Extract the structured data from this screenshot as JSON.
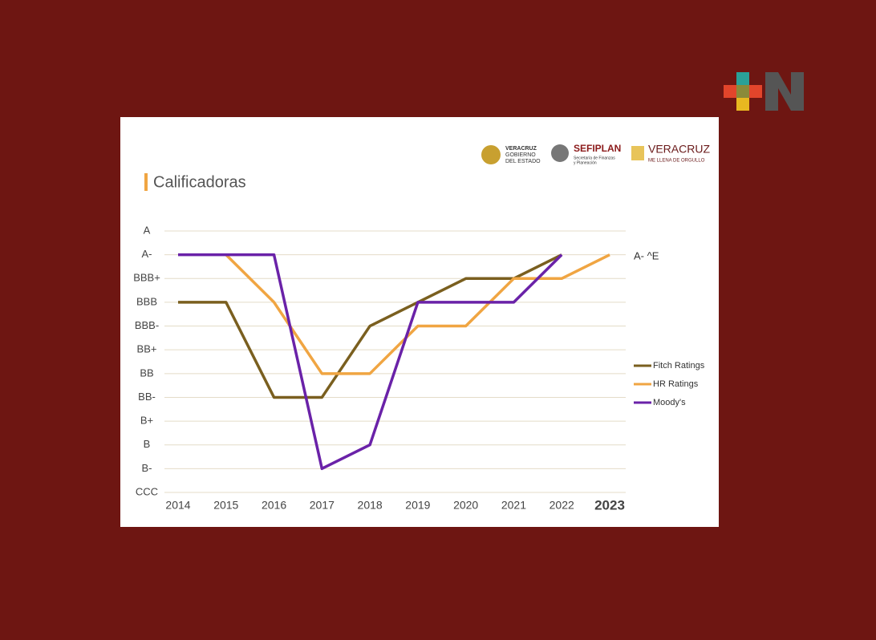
{
  "logos": {
    "gobierno": [
      "VERACRUZ",
      "GOBIERNO",
      "DEL ESTADO"
    ],
    "sefiplan": "SEFIPLAN",
    "sefiplan_sub": [
      "Secretaría de Finanzas",
      "y Planeación"
    ],
    "veracruz": "VERACRUZ",
    "veracruz_sub": "ME LLENA DE ORGULLO"
  },
  "chart_data": {
    "type": "line",
    "title": "Calificadoras",
    "categories": [
      "2014",
      "2015",
      "2016",
      "2017",
      "2018",
      "2019",
      "2020",
      "2021",
      "2022",
      "2023"
    ],
    "ylim": [
      0,
      11
    ],
    "yticks": [
      {
        "value": 0,
        "label": "CCC"
      },
      {
        "value": 1,
        "label": "B-"
      },
      {
        "value": 2,
        "label": "B"
      },
      {
        "value": 3,
        "label": "B+"
      },
      {
        "value": 4,
        "label": "BB-"
      },
      {
        "value": 5,
        "label": "BB"
      },
      {
        "value": 6,
        "label": "BB+"
      },
      {
        "value": 7,
        "label": "BBB-"
      },
      {
        "value": 8,
        "label": "BBB"
      },
      {
        "value": 9,
        "label": "BBB+"
      },
      {
        "value": 10,
        "label": "A-"
      },
      {
        "value": 11,
        "label": "A"
      }
    ],
    "grid": true,
    "series": [
      {
        "name": "Fitch Ratings",
        "color": "#7a5f1f",
        "values": [
          8,
          8,
          4,
          4,
          7,
          8,
          9,
          9,
          10,
          null
        ]
      },
      {
        "name": "HR Ratings",
        "color": "#f0a542",
        "values": [
          null,
          10,
          8,
          5,
          5,
          7,
          7,
          9,
          9,
          10
        ]
      },
      {
        "name": "Moody's",
        "color": "#6a22a8",
        "values": [
          10,
          10,
          10,
          1,
          2,
          8,
          8,
          8,
          10,
          null
        ]
      }
    ],
    "annotation": "A- ^E",
    "legend": "right"
  }
}
